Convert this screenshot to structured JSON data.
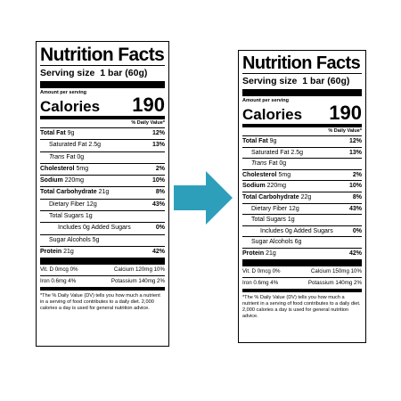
{
  "left": {
    "title": "Nutrition Facts",
    "serving_label": "Serving size",
    "serving_value": "1 bar (60g)",
    "amount_per_serving": "Amount per serving",
    "calories_label": "Calories",
    "calories_value": "190",
    "dv_header": "% Daily Value*",
    "nutrients": [
      {
        "name": "Total Fat",
        "amount": "9g",
        "dv": "12%"
      },
      {
        "name": "Saturated Fat",
        "amount": "2.5g",
        "dv": "13%"
      },
      {
        "name": "Trans",
        "amount": "Fat 0g",
        "dv": ""
      },
      {
        "name": "Cholesterol",
        "amount": "5mg",
        "dv": "2%"
      },
      {
        "name": "Sodium",
        "amount": "220mg",
        "dv": "10%"
      },
      {
        "name": "Total Carbohydrate",
        "amount": "21g",
        "dv": "8%"
      },
      {
        "name": "Dietary Fiber",
        "amount": "12g",
        "dv": "43%"
      },
      {
        "name": "Total Sugars",
        "amount": "1g",
        "dv": ""
      },
      {
        "name": "Includes 0g Added Sugars",
        "amount": "",
        "dv": "0%"
      },
      {
        "name": "Sugar Alcohols",
        "amount": "5g",
        "dv": ""
      },
      {
        "name": "Protein",
        "amount": "21g",
        "dv": "42%"
      }
    ],
    "vitamins": [
      {
        "a": "Vit. D 0mcg 0%",
        "b": "Calcium 120mg 10%"
      },
      {
        "a": "Iron 0.6mg 4%",
        "b": "Potassium 140mg 2%"
      }
    ],
    "footnote": "*The % Daily Value (DV) tells you how much a nutrient in a serving of food contributes to a daily diet. 2,000 calories a day is used for general nutrition advice."
  },
  "right": {
    "title": "Nutrition Facts",
    "serving_label": "Serving size",
    "serving_value": "1 bar (60g)",
    "amount_per_serving": "Amount per serving",
    "calories_label": "Calories",
    "calories_value": "190",
    "dv_header": "% Daily Value*",
    "nutrients": [
      {
        "name": "Total Fat",
        "amount": "9g",
        "dv": "12%"
      },
      {
        "name": "Saturated Fat",
        "amount": "2.5g",
        "dv": "13%"
      },
      {
        "name": "Trans",
        "amount": "Fat 0g",
        "dv": ""
      },
      {
        "name": "Cholesterol",
        "amount": "5mg",
        "dv": "2%"
      },
      {
        "name": "Sodium",
        "amount": "220mg",
        "dv": "10%"
      },
      {
        "name": "Total Carbohydrate",
        "amount": "22g",
        "dv": "8%"
      },
      {
        "name": "Dietary Fiber",
        "amount": "12g",
        "dv": "43%"
      },
      {
        "name": "Total Sugars",
        "amount": "1g",
        "dv": ""
      },
      {
        "name": "Includes 0g Added Sugars",
        "amount": "",
        "dv": "0%"
      },
      {
        "name": "Sugar Alcohols",
        "amount": "6g",
        "dv": ""
      },
      {
        "name": "Protein",
        "amount": "21g",
        "dv": "42%"
      }
    ],
    "vitamins": [
      {
        "a": "Vit. D 0mcg 0%",
        "b": "Calcium 150mg 10%"
      },
      {
        "a": "Iron 0.6mg 4%",
        "b": "Potassium 140mg 2%"
      }
    ],
    "footnote": "*The % Daily Value (DV) tells you how much a nutrient in a serving of food contributes to a daily diet. 2,000 calories a day is used for general nutrition advice."
  },
  "arrow": {
    "icon": "right-arrow-icon",
    "color": "#2e9fba"
  }
}
